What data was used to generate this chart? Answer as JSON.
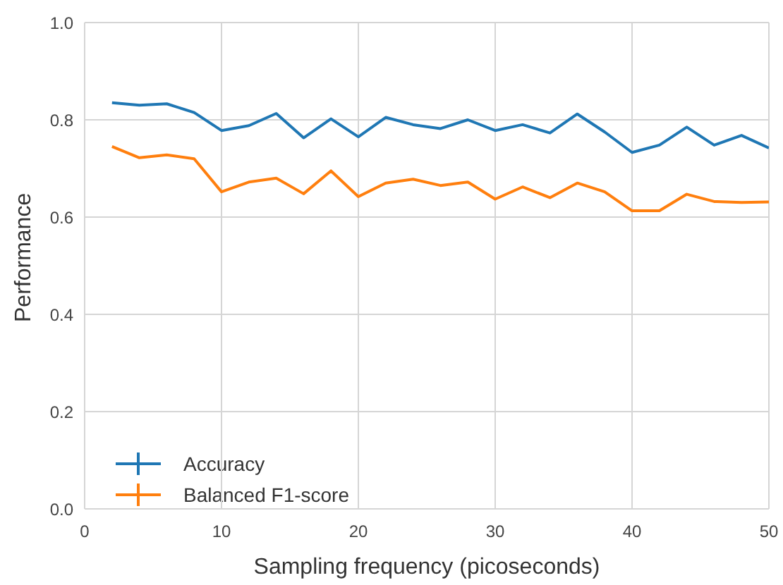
{
  "chart_data": {
    "type": "line",
    "xlabel": "Sampling frequency (picoseconds)",
    "ylabel": "Performance",
    "x": [
      2,
      4,
      6,
      8,
      10,
      12,
      14,
      16,
      18,
      20,
      22,
      24,
      26,
      28,
      30,
      32,
      34,
      36,
      38,
      40,
      42,
      44,
      46,
      48,
      50
    ],
    "series": [
      {
        "name": "Accuracy",
        "color": "#1f77b4",
        "values": [
          0.835,
          0.83,
          0.833,
          0.815,
          0.778,
          0.788,
          0.813,
          0.763,
          0.802,
          0.765,
          0.805,
          0.79,
          0.782,
          0.8,
          0.778,
          0.79,
          0.773,
          0.812,
          0.775,
          0.733,
          0.748,
          0.785,
          0.748,
          0.768,
          0.742
        ]
      },
      {
        "name": "Balanced F1-score",
        "color": "#ff7f0e",
        "values": [
          0.745,
          0.722,
          0.728,
          0.72,
          0.652,
          0.672,
          0.68,
          0.648,
          0.695,
          0.642,
          0.67,
          0.678,
          0.665,
          0.672,
          0.637,
          0.662,
          0.64,
          0.67,
          0.652,
          0.613,
          0.613,
          0.647,
          0.632,
          0.63,
          0.631
        ]
      }
    ],
    "xlim": [
      0,
      50
    ],
    "xticks": [
      0,
      10,
      20,
      30,
      40,
      50
    ],
    "ylim": [
      0,
      1
    ],
    "yticks": [
      {
        "value": 0,
        "label": "0.0"
      },
      {
        "value": 0.2,
        "label": "0.2"
      },
      {
        "value": 0.4,
        "label": "0.4"
      },
      {
        "value": 0.6,
        "label": "0.6"
      },
      {
        "value": 0.8,
        "label": "0.8"
      },
      {
        "value": 1,
        "label": "1.0"
      }
    ],
    "grid": true,
    "legend": "bottom left",
    "marker": "none",
    "line_style": "solid"
  }
}
